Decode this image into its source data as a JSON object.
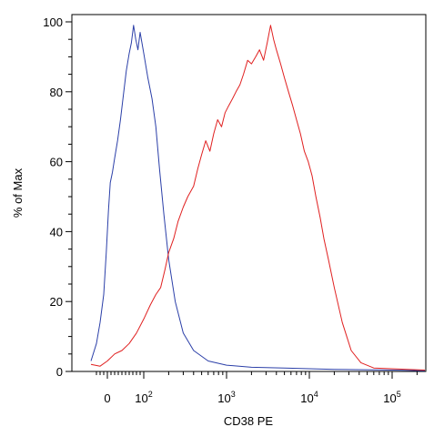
{
  "chart_data": {
    "type": "line",
    "title": "",
    "xlabel": "CD38 PE",
    "ylabel": "% of Max",
    "x_scale": "biexponential",
    "xlim": [
      -50,
      250000
    ],
    "ylim": [
      0,
      100
    ],
    "grid": false,
    "legend": "none",
    "x_ticks": [
      {
        "value": 0,
        "base": "0",
        "exp": ""
      },
      {
        "value": 100,
        "base": "10",
        "exp": "2"
      },
      {
        "value": 1000,
        "base": "10",
        "exp": "3"
      },
      {
        "value": 10000,
        "base": "10",
        "exp": "4"
      },
      {
        "value": 100000,
        "base": "10",
        "exp": "5"
      }
    ],
    "y_ticks": [
      0,
      20,
      40,
      60,
      80,
      100
    ],
    "series": [
      {
        "color": "#2b3fa8",
        "x": [
          -45,
          -30,
          -20,
          -10,
          -3,
          3,
          8,
          14,
          20,
          28,
          36,
          44,
          52,
          60,
          66,
          72,
          78,
          84,
          90,
          100,
          112,
          126,
          140,
          155,
          175,
          200,
          240,
          300,
          400,
          600,
          1000,
          2000,
          5000,
          20000,
          100000,
          250000
        ],
        "y": [
          3,
          8,
          14,
          22,
          34,
          46,
          54,
          57,
          61,
          66,
          72,
          79,
          86,
          91,
          94,
          99,
          95,
          92,
          97,
          91,
          84,
          78,
          70,
          58,
          45,
          32,
          20,
          11,
          6,
          3,
          1.8,
          1.2,
          1,
          0.6,
          0.4,
          0.2
        ]
      },
      {
        "color": "#e02020",
        "x": [
          -45,
          -20,
          0,
          20,
          40,
          60,
          80,
          100,
          120,
          140,
          160,
          180,
          200,
          230,
          260,
          300,
          340,
          400,
          450,
          500,
          560,
          630,
          700,
          780,
          870,
          960,
          1060,
          1180,
          1300,
          1450,
          1600,
          1800,
          2000,
          2250,
          2500,
          2800,
          3100,
          3400,
          3700,
          4000,
          4500,
          5000,
          5600,
          6300,
          7000,
          7800,
          8700,
          9700,
          10800,
          12000,
          13500,
          15000,
          17000,
          20000,
          25000,
          32000,
          42000,
          60000,
          250000
        ],
        "y": [
          2,
          1.5,
          3,
          5,
          6,
          8,
          11,
          15,
          19,
          22,
          24,
          29,
          34,
          38,
          43,
          47,
          50,
          53,
          58,
          62,
          66,
          63,
          68,
          72,
          70,
          74,
          76,
          78,
          80,
          82,
          85,
          89,
          88,
          90,
          92,
          89,
          94,
          99,
          95,
          92,
          88,
          84,
          80,
          76,
          72,
          68,
          63,
          60,
          56,
          50,
          44,
          38,
          32,
          24,
          14,
          6,
          2.5,
          1,
          0.4
        ]
      }
    ]
  }
}
